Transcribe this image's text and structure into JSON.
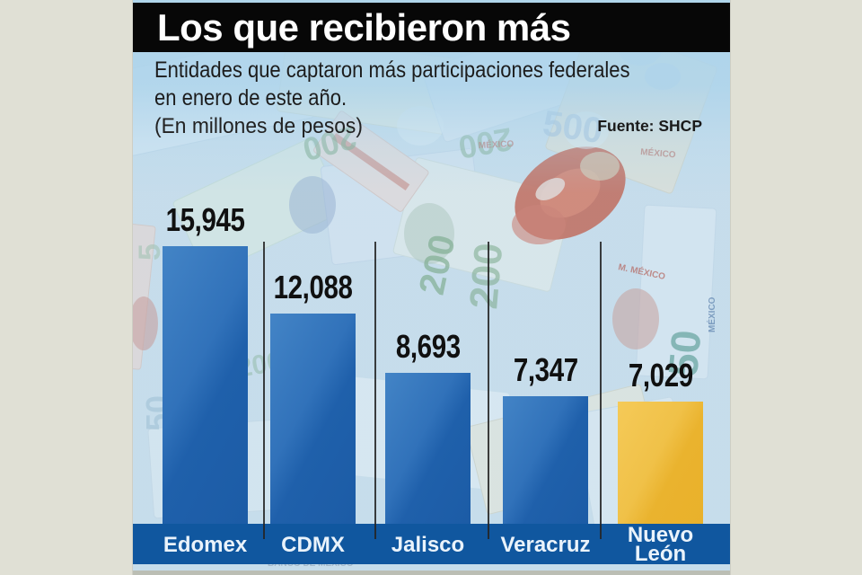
{
  "header": {
    "title": "Los que recibieron más",
    "subtitle_line1": "Entidades que captaron más participaciones federales",
    "subtitle_line2": "en enero de este año.",
    "units_note": "(En millones de pesos)",
    "source": "Fuente: SHCP"
  },
  "colors": {
    "bar_blue": "#2569b3",
    "bar_highlight_yellow": "#efbf3d",
    "axis_band_blue": "#10579f",
    "header_black": "#070707",
    "background_light_blue": "#aed4e9",
    "page_margin_gray": "#e0e0d5",
    "value_label_black": "#101010",
    "band_label_white": "#eaf3fb"
  },
  "chart_data": {
    "type": "bar",
    "title": "Los que recibieron más",
    "subtitle": "Entidades que captaron más participaciones federales en enero de este año.",
    "units": "En millones de pesos",
    "source": "Fuente: SHCP",
    "categories": [
      "Edomex",
      "CDMX",
      "Jalisco",
      "Veracruz",
      "Nuevo León"
    ],
    "values": [
      15945,
      12088,
      8693,
      7347,
      7029
    ],
    "value_labels": [
      "15,945",
      "12,088",
      "8,693",
      "7,347",
      "7,029"
    ],
    "bar_colors": [
      "#2569b3",
      "#2569b3",
      "#2569b3",
      "#2569b3",
      "#efbf3d"
    ],
    "highlighted_category": "Nuevo León",
    "orientation": "vertical",
    "gridlines": false,
    "legend": "none",
    "background": "mexican-peso-banknote-collage"
  }
}
